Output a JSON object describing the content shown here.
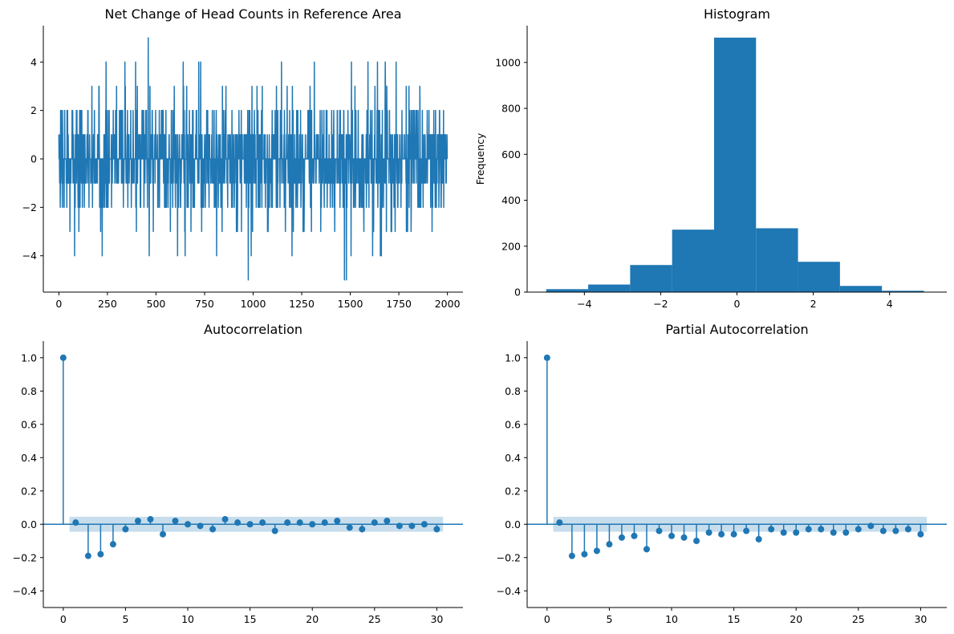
{
  "colors": {
    "series": "#1f77b4",
    "band": "#1f77b4",
    "axis": "#000000",
    "background": "#ffffff"
  },
  "chart_data": [
    {
      "id": "line",
      "type": "line",
      "title": "Net Change of Head Counts in Reference Area",
      "xlabel": "",
      "ylabel": "",
      "xlim": [
        -80,
        2080
      ],
      "ylim": [
        -5.5,
        5.5
      ],
      "xticks": [
        0,
        250,
        500,
        750,
        1000,
        1250,
        1500,
        1750,
        2000
      ],
      "yticks": [
        -4,
        -2,
        0,
        2,
        4
      ],
      "n_points": 2000,
      "value_range": [
        -5,
        5
      ],
      "notable_points": [
        {
          "x": 460,
          "y": 5
        },
        {
          "x": 975,
          "y": -5
        },
        {
          "x": 1470,
          "y": -5
        },
        {
          "x": 1480,
          "y": -5
        },
        {
          "x": 340,
          "y": 4
        },
        {
          "x": 395,
          "y": 4
        },
        {
          "x": 640,
          "y": 4
        },
        {
          "x": 720,
          "y": 4
        },
        {
          "x": 730,
          "y": 4
        },
        {
          "x": 1640,
          "y": 4
        },
        {
          "x": 1680,
          "y": 4
        },
        {
          "x": 465,
          "y": -4
        },
        {
          "x": 650,
          "y": -4
        },
        {
          "x": 990,
          "y": -4
        },
        {
          "x": 1200,
          "y": -4
        },
        {
          "x": 1660,
          "y": -4
        }
      ],
      "grid": false
    },
    {
      "id": "hist",
      "type": "bar",
      "title": "Histogram",
      "xlabel": "",
      "ylabel": "Frequency",
      "xlim": [
        -5.5,
        5.5
      ],
      "ylim": [
        0,
        1160
      ],
      "xticks": [
        -4,
        -2,
        0,
        2,
        4
      ],
      "yticks": [
        0,
        200,
        400,
        600,
        800,
        1000
      ],
      "bins": [
        {
          "x0": -5,
          "x1": -3.9,
          "value": 13
        },
        {
          "x0": -3.9,
          "x1": -2.8,
          "value": 33
        },
        {
          "x0": -2.8,
          "x1": -1.7,
          "value": 118
        },
        {
          "x0": -1.7,
          "x1": -0.6,
          "value": 272
        },
        {
          "x0": -0.6,
          "x1": 0.5,
          "value": 1108
        },
        {
          "x0": 0.5,
          "x1": 1.6,
          "value": 278
        },
        {
          "x0": 1.6,
          "x1": 2.7,
          "value": 132
        },
        {
          "x0": 2.7,
          "x1": 3.8,
          "value": 27
        },
        {
          "x0": 3.8,
          "x1": 4.9,
          "value": 6
        }
      ],
      "grid": false
    },
    {
      "id": "acf",
      "type": "scatter",
      "title": "Autocorrelation",
      "xlabel": "",
      "ylabel": "",
      "xlim": [
        -1.6,
        32.1
      ],
      "ylim": [
        -0.5,
        1.1
      ],
      "xticks": [
        0,
        5,
        10,
        15,
        20,
        25,
        30
      ],
      "yticks": [
        -0.4,
        -0.2,
        0.0,
        0.2,
        0.4,
        0.6,
        0.8,
        1.0
      ],
      "confidence_band": [
        -0.045,
        0.045
      ],
      "lags": [
        0,
        1,
        2,
        3,
        4,
        5,
        6,
        7,
        8,
        9,
        10,
        11,
        12,
        13,
        14,
        15,
        16,
        17,
        18,
        19,
        20,
        21,
        22,
        23,
        24,
        25,
        26,
        27,
        28,
        29,
        30
      ],
      "values": [
        1.0,
        0.01,
        -0.19,
        -0.18,
        -0.12,
        -0.03,
        0.02,
        0.03,
        -0.06,
        0.02,
        0.0,
        -0.01,
        -0.03,
        0.03,
        0.01,
        0.0,
        0.01,
        -0.04,
        0.01,
        0.01,
        0.0,
        0.01,
        0.02,
        -0.02,
        -0.03,
        0.01,
        0.02,
        -0.01,
        -0.01,
        0.0,
        -0.03
      ],
      "grid": false
    },
    {
      "id": "pacf",
      "type": "scatter",
      "title": "Partial Autocorrelation",
      "xlabel": "",
      "ylabel": "",
      "xlim": [
        -1.6,
        32.1
      ],
      "ylim": [
        -0.5,
        1.1
      ],
      "xticks": [
        0,
        5,
        10,
        15,
        20,
        25,
        30
      ],
      "yticks": [
        -0.4,
        -0.2,
        0.0,
        0.2,
        0.4,
        0.6,
        0.8,
        1.0
      ],
      "confidence_band": [
        -0.045,
        0.045
      ],
      "lags": [
        0,
        1,
        2,
        3,
        4,
        5,
        6,
        7,
        8,
        9,
        10,
        11,
        12,
        13,
        14,
        15,
        16,
        17,
        18,
        19,
        20,
        21,
        22,
        23,
        24,
        25,
        26,
        27,
        28,
        29,
        30
      ],
      "values": [
        1.0,
        0.01,
        -0.19,
        -0.18,
        -0.16,
        -0.12,
        -0.08,
        -0.07,
        -0.15,
        -0.04,
        -0.07,
        -0.08,
        -0.1,
        -0.05,
        -0.06,
        -0.06,
        -0.04,
        -0.09,
        -0.03,
        -0.05,
        -0.05,
        -0.03,
        -0.03,
        -0.05,
        -0.05,
        -0.03,
        -0.01,
        -0.04,
        -0.04,
        -0.03,
        -0.06
      ],
      "grid": false
    }
  ]
}
